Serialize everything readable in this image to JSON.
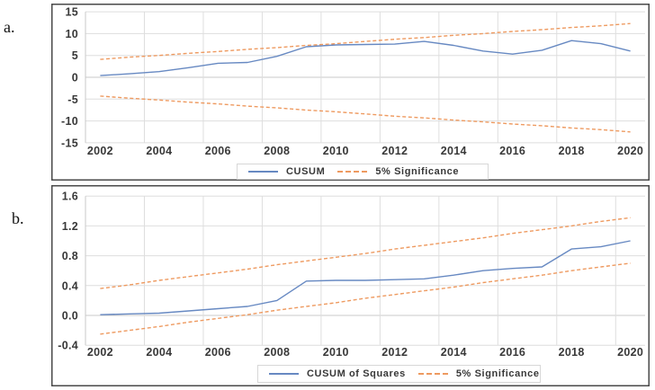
{
  "figure": {
    "panels": [
      {
        "label": "a."
      },
      {
        "label": "b."
      }
    ]
  },
  "colors": {
    "series_blue": "#6789C2",
    "series_orange": "#EE9A60",
    "grid": "#dedede",
    "zero_axis": "#c9c9c9",
    "frame": "#4a4a4a",
    "text": "#383838"
  },
  "chart_data": [
    {
      "type": "line",
      "panel": "a",
      "title": "",
      "xlabel": "",
      "ylabel": "",
      "grid": true,
      "legend_position": "bottom-center",
      "x": [
        2002,
        2003,
        2004,
        2005,
        2006,
        2007,
        2008,
        2009,
        2010,
        2011,
        2012,
        2013,
        2014,
        2015,
        2016,
        2017,
        2018,
        2019,
        2020
      ],
      "x_tick_labels": [
        "2002",
        "2004",
        "2006",
        "2008",
        "2010",
        "2012",
        "2014",
        "2016",
        "2018",
        "2020"
      ],
      "ylim": [
        -15,
        15
      ],
      "y_ticks": [
        15,
        10,
        5,
        0,
        -5,
        -10,
        -15
      ],
      "y_tick_labels": [
        "15",
        "10",
        "5",
        "0",
        "-5",
        "-10",
        "-15"
      ],
      "series": [
        {
          "name": "CUSUM",
          "name_key": "cusum-line",
          "style": "solid",
          "color_key": "series_blue",
          "values": [
            0.4,
            0.8,
            1.3,
            2.2,
            3.2,
            3.4,
            4.8,
            7.0,
            7.4,
            7.5,
            7.6,
            8.2,
            7.3,
            6.0,
            5.3,
            6.2,
            8.4,
            7.7,
            6.0
          ]
        },
        {
          "name": "5% Significance (upper)",
          "name_key": "significance-upper-line",
          "style": "dashed",
          "color_key": "series_orange",
          "values": [
            4.1,
            4.6,
            5.0,
            5.5,
            5.9,
            6.4,
            6.8,
            7.3,
            7.7,
            8.2,
            8.7,
            9.1,
            9.6,
            10.0,
            10.5,
            10.9,
            11.4,
            11.8,
            12.3
          ]
        },
        {
          "name": "5% Significance (lower)",
          "name_key": "significance-lower-line",
          "style": "dashed",
          "color_key": "series_orange",
          "values": [
            -4.3,
            -4.8,
            -5.2,
            -5.7,
            -6.1,
            -6.6,
            -7.0,
            -7.5,
            -7.9,
            -8.4,
            -8.9,
            -9.3,
            -9.8,
            -10.2,
            -10.7,
            -11.1,
            -11.6,
            -12.0,
            -12.5
          ]
        }
      ],
      "legend": [
        {
          "label": "CUSUM",
          "style": "solid"
        },
        {
          "label": "5% Significance",
          "style": "dashed"
        }
      ]
    },
    {
      "type": "line",
      "panel": "b",
      "title": "",
      "xlabel": "",
      "ylabel": "",
      "grid": true,
      "legend_position": "bottom-center",
      "x": [
        2002,
        2003,
        2004,
        2005,
        2006,
        2007,
        2008,
        2009,
        2010,
        2011,
        2012,
        2013,
        2014,
        2015,
        2016,
        2017,
        2018,
        2019,
        2020
      ],
      "x_tick_labels": [
        "2002",
        "2004",
        "2006",
        "2008",
        "2010",
        "2012",
        "2014",
        "2016",
        "2018",
        "2020"
      ],
      "ylim": [
        -0.4,
        1.6
      ],
      "y_ticks": [
        1.6,
        1.2,
        0.8,
        0.4,
        0.0,
        -0.4
      ],
      "y_tick_labels": [
        "1.6",
        "1.2",
        "0.8",
        "0.4",
        "0.0",
        "-0.4"
      ],
      "series": [
        {
          "name": "CUSUM of Squares",
          "name_key": "cusum-of-squares-line",
          "style": "solid",
          "color_key": "series_blue",
          "values": [
            0.01,
            0.02,
            0.03,
            0.06,
            0.09,
            0.12,
            0.2,
            0.46,
            0.47,
            0.47,
            0.48,
            0.49,
            0.54,
            0.6,
            0.63,
            0.65,
            0.89,
            0.92,
            1.0
          ]
        },
        {
          "name": "5% Significance (upper)",
          "name_key": "significance-upper-line",
          "style": "dashed",
          "color_key": "series_orange",
          "values": [
            0.36,
            0.41,
            0.47,
            0.52,
            0.57,
            0.62,
            0.68,
            0.73,
            0.78,
            0.83,
            0.89,
            0.94,
            0.99,
            1.04,
            1.1,
            1.15,
            1.2,
            1.26,
            1.31
          ]
        },
        {
          "name": "5% Significance (lower)",
          "name_key": "significance-lower-line",
          "style": "dashed",
          "color_key": "series_orange",
          "values": [
            -0.25,
            -0.2,
            -0.15,
            -0.09,
            -0.04,
            0.01,
            0.07,
            0.12,
            0.17,
            0.23,
            0.28,
            0.33,
            0.38,
            0.44,
            0.49,
            0.54,
            0.6,
            0.65,
            0.7
          ]
        }
      ],
      "legend": [
        {
          "label": "CUSUM of Squares",
          "style": "solid"
        },
        {
          "label": "5% Significance",
          "style": "dashed"
        }
      ]
    }
  ]
}
